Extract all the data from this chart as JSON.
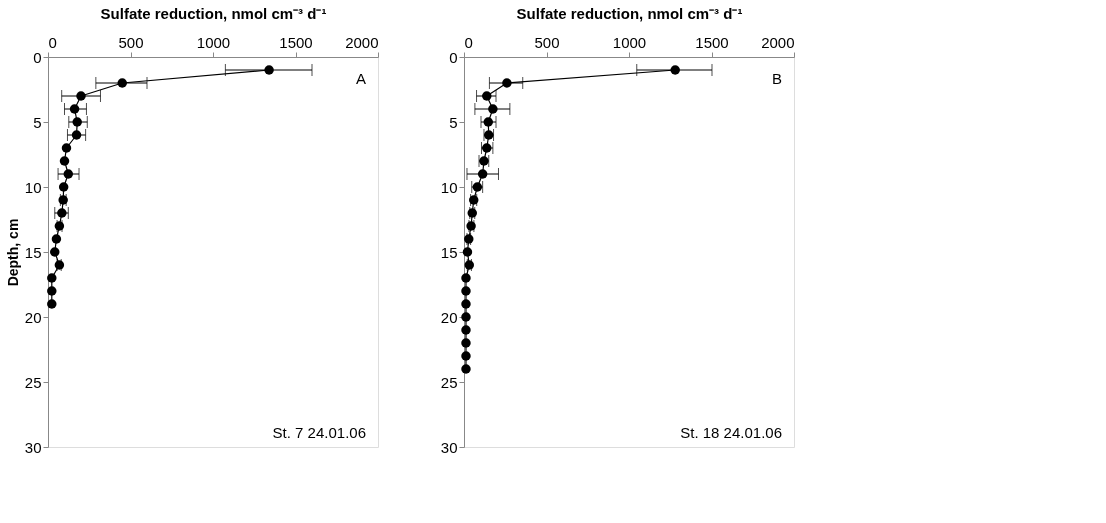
{
  "chart_data": [
    {
      "type": "line",
      "xlabel": "Sulfate reduction, nmol cm⁻³ d⁻¹",
      "ylabel": "Depth, cm",
      "annotations": [
        "A",
        "St. 7 24.01.06"
      ],
      "xlim": [
        0,
        2000
      ],
      "xticks": [
        0,
        500,
        1000,
        1500,
        2000
      ],
      "ylim": [
        30,
        0
      ],
      "yticks": [
        0,
        5,
        10,
        15,
        20,
        25,
        30
      ],
      "grid": false,
      "marker": "circle",
      "line_style": "solid",
      "series": [
        {
          "color": "#000000",
          "x": [
            1340,
            450,
            200,
            161,
            177,
            173,
            112,
            100,
            123,
            95,
            92,
            84,
            69,
            51,
            41,
            69,
            23,
            23,
            23
          ],
          "values": [
            1,
            2,
            3,
            4,
            5,
            6,
            7,
            8,
            9,
            10,
            11,
            12,
            13,
            14,
            15,
            16,
            17,
            18,
            19
          ],
          "xerrors": [
            [
              1075,
              1600
            ],
            [
              290,
              600
            ],
            [
              83,
              318
            ],
            [
              100,
              233
            ],
            [
              126,
              238
            ],
            [
              118,
              228
            ],
            null,
            null,
            [
              61,
              188
            ],
            null,
            [
              75,
              110
            ],
            [
              41,
              123
            ],
            [
              55,
              85
            ],
            null,
            null,
            [
              55,
              80
            ],
            null,
            null,
            null
          ]
        }
      ]
    },
    {
      "type": "line",
      "xlabel": "Sulfate reduction, nmol cm⁻³ d⁻¹",
      "annotations": [
        "B",
        "St. 18 24.01.06"
      ],
      "xlim": [
        0,
        2000
      ],
      "xticks": [
        0,
        500,
        1000,
        1500,
        2000
      ],
      "ylim": [
        30,
        0
      ],
      "yticks": [
        0,
        5,
        10,
        15,
        20,
        25,
        30
      ],
      "grid": false,
      "marker": "circle",
      "line_style": "solid",
      "series": [
        {
          "color": "#000000",
          "x": [
            1280,
            260,
            138,
            175,
            147,
            150,
            138,
            121,
            113,
            81,
            59,
            50,
            43,
            29,
            21,
            32,
            12,
            12,
            12,
            12,
            12,
            12,
            12,
            12
          ],
          "values": [
            1,
            2,
            3,
            4,
            5,
            6,
            7,
            8,
            9,
            10,
            11,
            12,
            13,
            14,
            15,
            16,
            17,
            18,
            19,
            20,
            21,
            22,
            23,
            24
          ],
          "xerrors": [
            [
              1047,
              1503
            ],
            [
              154,
              356
            ],
            [
              76,
              194
            ],
            [
              66,
              278
            ],
            [
              103,
              194
            ],
            [
              121,
              179
            ],
            [
              106,
              175
            ],
            [
              91,
              150
            ],
            [
              18,
              209
            ],
            [
              47,
              113
            ],
            [
              40,
              77
            ],
            [
              35,
              65
            ],
            [
              30,
              60
            ],
            [
              18,
              40
            ],
            null,
            [
              20,
              45
            ],
            null,
            null,
            null,
            null,
            null,
            null,
            null,
            null
          ]
        }
      ]
    }
  ]
}
